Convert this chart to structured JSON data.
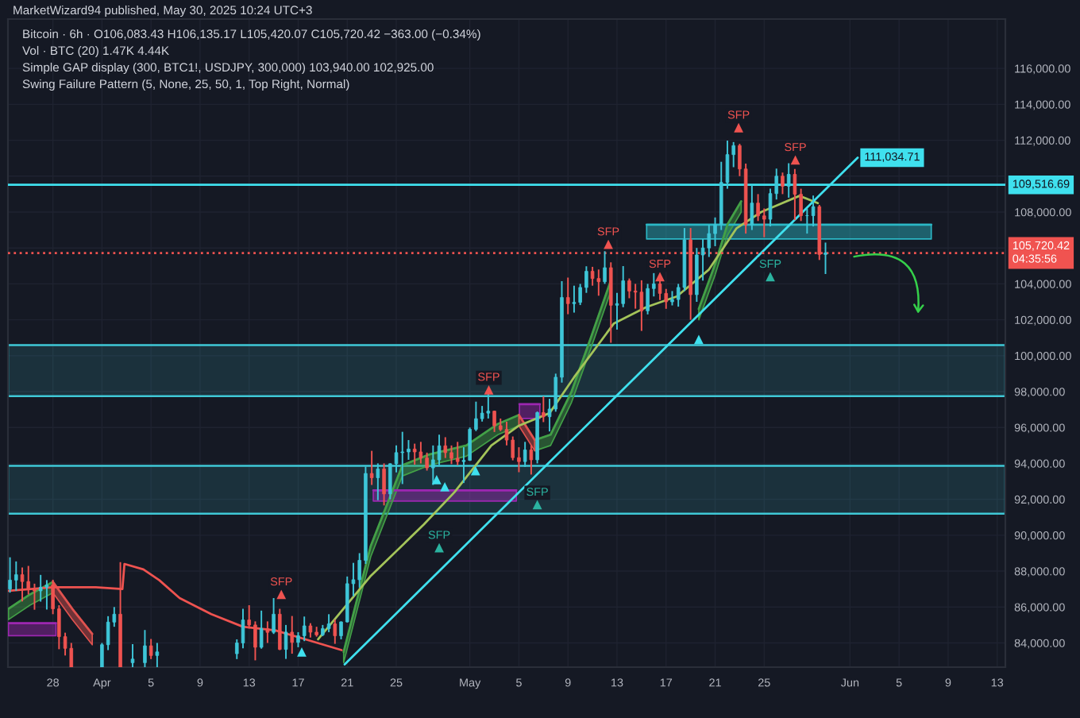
{
  "chart_data": {
    "type": "candlestick",
    "title": "MarketWizard94 published, May 30, 2025 10:24 UTC+3",
    "subtitle": "Bitcoin · 6h · O106,083.43 H106,135.17 L105,420.07 C105,720.42 −363.00 (−0.34%)",
    "annotations": [
      "Vol · BTC (20) 1.47K 4.44K",
      "Simple GAP display (300, BTC1!, USDJPY, 300,000) 103,940.00 102,925.00",
      "Swing Failure Pattern (5, None, 25, 50, 1, Top Right, Normal)"
    ],
    "xlim": [
      "2025-03-24T08:00",
      "2025-06-13T16:00"
    ],
    "ylim": [
      82650,
      118750
    ],
    "xticks": [
      {
        "value": "2025-03-28",
        "label": "28"
      },
      {
        "value": "2025-04-01",
        "label": "Apr"
      },
      {
        "value": "2025-04-05",
        "label": "5"
      },
      {
        "value": "2025-04-09",
        "label": "9"
      },
      {
        "value": "2025-04-13",
        "label": "13"
      },
      {
        "value": "2025-04-17",
        "label": "17"
      },
      {
        "value": "2025-04-21",
        "label": "21"
      },
      {
        "value": "2025-04-25",
        "label": "25"
      },
      {
        "value": "2025-05-01",
        "label": "May"
      },
      {
        "value": "2025-05-05",
        "label": "5"
      },
      {
        "value": "2025-05-09",
        "label": "9"
      },
      {
        "value": "2025-05-13",
        "label": "13"
      },
      {
        "value": "2025-05-17",
        "label": "17"
      },
      {
        "value": "2025-05-21",
        "label": "21"
      },
      {
        "value": "2025-05-25",
        "label": "25"
      },
      {
        "value": "2025-06-01",
        "label": "Jun"
      },
      {
        "value": "2025-06-05",
        "label": "5"
      },
      {
        "value": "2025-06-09",
        "label": "9"
      },
      {
        "value": "2025-06-13",
        "label": "13"
      }
    ],
    "yticks": [
      {
        "value": 84000,
        "label": "84,000.00"
      },
      {
        "value": 86000,
        "label": "86,000.00"
      },
      {
        "value": 88000,
        "label": "88,000.00"
      },
      {
        "value": 90000,
        "label": "90,000.00"
      },
      {
        "value": 92000,
        "label": "92,000.00"
      },
      {
        "value": 94000,
        "label": "94,000.00"
      },
      {
        "value": 96000,
        "label": "96,000.00"
      },
      {
        "value": 98000,
        "label": "98,000.00"
      },
      {
        "value": 100000,
        "label": "100,000.00"
      },
      {
        "value": 102000,
        "label": "102,000.00"
      },
      {
        "value": 104000,
        "label": "104,000.00"
      },
      {
        "value": 106000,
        "label": null
      },
      {
        "value": 108000,
        "label": "108,000.00"
      },
      {
        "value": 110000,
        "label": null
      },
      {
        "value": 112000,
        "label": "112,000.00"
      },
      {
        "value": 114000,
        "label": "114,000.00"
      },
      {
        "value": 116000,
        "label": "116,000.00"
      }
    ],
    "grid": true,
    "x": [
      "2025-03-24T12:00",
      "2025-03-25T00:00",
      "2025-03-25T12:00",
      "2025-03-26T00:00",
      "2025-03-26T12:00",
      "2025-03-27T00:00",
      "2025-03-27T12:00",
      "2025-03-28T00:00",
      "2025-03-28T12:00",
      "2025-03-29T00:00",
      "2025-03-29T12:00",
      "2025-04-01T00:00",
      "2025-04-01T12:00",
      "2025-04-02T00:00",
      "2025-04-02T12:00",
      "2025-04-03T12:00",
      "2025-04-04T12:00",
      "2025-04-05T00:00",
      "2025-04-05T12:00",
      "2025-04-12T00:00",
      "2025-04-12T12:00",
      "2025-04-13T00:00",
      "2025-04-13T12:00",
      "2025-04-14T00:00",
      "2025-04-14T12:00",
      "2025-04-15T00:00",
      "2025-04-15T12:00",
      "2025-04-16T00:00",
      "2025-04-16T12:00",
      "2025-04-17T00:00",
      "2025-04-17T12:00",
      "2025-04-18T00:00",
      "2025-04-18T12:00",
      "2025-04-19T00:00",
      "2025-04-19T12:00",
      "2025-04-20T00:00",
      "2025-04-20T12:00",
      "2025-04-21T00:00",
      "2025-04-21T12:00",
      "2025-04-22T00:00",
      "2025-04-22T12:00",
      "2025-04-23T00:00",
      "2025-04-23T12:00",
      "2025-04-24T00:00",
      "2025-04-24T12:00",
      "2025-04-25T00:00",
      "2025-04-25T12:00",
      "2025-04-26T00:00",
      "2025-04-26T12:00",
      "2025-04-27T00:00",
      "2025-04-27T12:00",
      "2025-04-28T00:00",
      "2025-04-28T12:00",
      "2025-04-29T00:00",
      "2025-04-29T12:00",
      "2025-04-30T00:00",
      "2025-04-30T12:00",
      "2025-05-01T00:00",
      "2025-05-01T12:00",
      "2025-05-02T00:00",
      "2025-05-02T12:00",
      "2025-05-03T00:00",
      "2025-05-03T12:00",
      "2025-05-04T00:00",
      "2025-05-04T12:00",
      "2025-05-05T00:00",
      "2025-05-05T12:00",
      "2025-05-06T00:00",
      "2025-05-06T12:00",
      "2025-05-07T00:00",
      "2025-05-07T12:00",
      "2025-05-08T00:00",
      "2025-05-08T12:00",
      "2025-05-09T00:00",
      "2025-05-09T12:00",
      "2025-05-10T00:00",
      "2025-05-10T12:00",
      "2025-05-11T00:00",
      "2025-05-11T12:00",
      "2025-05-12T00:00",
      "2025-05-12T12:00",
      "2025-05-13T00:00",
      "2025-05-13T12:00",
      "2025-05-14T00:00",
      "2025-05-14T12:00",
      "2025-05-15T00:00",
      "2025-05-15T12:00",
      "2025-05-16T00:00",
      "2025-05-16T12:00",
      "2025-05-17T00:00",
      "2025-05-17T12:00",
      "2025-05-18T00:00",
      "2025-05-18T12:00",
      "2025-05-19T00:00",
      "2025-05-19T12:00",
      "2025-05-20T00:00",
      "2025-05-20T12:00",
      "2025-05-21T00:00",
      "2025-05-21T12:00",
      "2025-05-22T00:00",
      "2025-05-22T12:00",
      "2025-05-23T00:00",
      "2025-05-23T12:00",
      "2025-05-24T00:00",
      "2025-05-24T12:00",
      "2025-05-25T00:00",
      "2025-05-25T12:00",
      "2025-05-26T00:00",
      "2025-05-26T12:00",
      "2025-05-27T00:00",
      "2025-05-27T12:00",
      "2025-05-28T00:00",
      "2025-05-28T12:00",
      "2025-05-29T00:00",
      "2025-05-29T12:00",
      "2025-05-30T00:00"
    ],
    "ohlc": [
      [
        87000,
        88770,
        86800,
        87500
      ],
      [
        87500,
        88540,
        86900,
        87800
      ],
      [
        87800,
        88200,
        86310,
        87420
      ],
      [
        87420,
        88290,
        86700,
        87000
      ],
      [
        87000,
        87300,
        85850,
        86900
      ],
      [
        86900,
        87790,
        86300,
        87100
      ],
      [
        87100,
        87500,
        85860,
        87230
      ],
      [
        87230,
        87520,
        85600,
        85900
      ],
      [
        85900,
        86100,
        83650,
        84350
      ],
      [
        84350,
        84570,
        83300,
        83700
      ],
      [
        83700,
        84000,
        82650,
        82650
      ],
      [
        82650,
        84000,
        82650,
        83900
      ],
      [
        83900,
        85490,
        83600,
        85160
      ],
      [
        85160,
        86000,
        84900,
        85600
      ],
      [
        85600,
        88500,
        82650,
        82650
      ],
      [
        82900,
        83930,
        82650,
        83100
      ],
      [
        82900,
        84720,
        82650,
        83840
      ],
      [
        83840,
        84220,
        83100,
        83300
      ],
      [
        83300,
        84000,
        82650,
        83500
      ],
      [
        83400,
        84200,
        83100,
        84000
      ],
      [
        84000,
        85900,
        83700,
        85280
      ],
      [
        85280,
        86100,
        84800,
        85000
      ],
      [
        85000,
        85200,
        83030,
        83760
      ],
      [
        83760,
        85800,
        83680,
        84800
      ],
      [
        84800,
        85200,
        84000,
        84590
      ],
      [
        84590,
        86500,
        84500,
        85600
      ],
      [
        85600,
        85900,
        83600,
        83640
      ],
      [
        83640,
        85000,
        83110,
        84600
      ],
      [
        84600,
        85500,
        83400,
        84030
      ],
      [
        84030,
        84600,
        83760,
        84400
      ],
      [
        84400,
        85470,
        84100,
        84950
      ],
      [
        84950,
        85100,
        84300,
        84600
      ],
      [
        84600,
        84900,
        84350,
        84450
      ],
      [
        84450,
        85000,
        84380,
        84800
      ],
      [
        84800,
        85600,
        84600,
        85060
      ],
      [
        85060,
        85300,
        83950,
        84400
      ],
      [
        84400,
        85200,
        84200,
        85170
      ],
      [
        85170,
        87700,
        85140,
        87300
      ],
      [
        87300,
        88460,
        86600,
        87520
      ],
      [
        87520,
        89000,
        87080,
        88600
      ],
      [
        88600,
        93820,
        88400,
        93440
      ],
      [
        93440,
        94700,
        92800,
        93200
      ],
      [
        93200,
        94000,
        91950,
        93690
      ],
      [
        93690,
        94000,
        91660,
        92300
      ],
      [
        92300,
        94000,
        92000,
        93980
      ],
      [
        93980,
        95000,
        93500,
        94600
      ],
      [
        94600,
        95760,
        92850,
        94640
      ],
      [
        94640,
        95300,
        94200,
        94800
      ],
      [
        94800,
        95100,
        93930,
        94640
      ],
      [
        94640,
        95200,
        94000,
        94300
      ],
      [
        94300,
        94600,
        93600,
        93750
      ],
      [
        93750,
        95000,
        92800,
        94200
      ],
      [
        94200,
        95600,
        93900,
        94980
      ],
      [
        94980,
        95460,
        94300,
        94600
      ],
      [
        94600,
        95000,
        93960,
        94280
      ],
      [
        94280,
        95200,
        93900,
        94100
      ],
      [
        94100,
        94900,
        92910,
        94170
      ],
      [
        94170,
        96000,
        94140,
        95900
      ],
      [
        95900,
        97440,
        95800,
        96490
      ],
      [
        96490,
        97200,
        96330,
        96800
      ],
      [
        96800,
        97900,
        96500,
        96910
      ],
      [
        96910,
        96940,
        95750,
        96100
      ],
      [
        96100,
        96500,
        95800,
        95890
      ],
      [
        95890,
        96320,
        95000,
        95300
      ],
      [
        95300,
        95500,
        94170,
        94320
      ],
      [
        94320,
        94900,
        93510,
        94100
      ],
      [
        94100,
        95200,
        93800,
        94750
      ],
      [
        94750,
        95000,
        93380,
        94200
      ],
      [
        94200,
        96890,
        94000,
        96830
      ],
      [
        96830,
        97730,
        96300,
        96600
      ],
      [
        96600,
        97600,
        95780,
        97030
      ],
      [
        97030,
        99000,
        96880,
        98800
      ],
      [
        98800,
        104150,
        98500,
        103240
      ],
      [
        103240,
        104350,
        102310,
        102900
      ],
      [
        102900,
        103900,
        102400,
        102970
      ],
      [
        102970,
        104000,
        102820,
        103800
      ],
      [
        103800,
        104980,
        103500,
        104700
      ],
      [
        104700,
        104950,
        103900,
        104300
      ],
      [
        104300,
        104800,
        103340,
        104120
      ],
      [
        104120,
        105820,
        104000,
        104900
      ],
      [
        104900,
        105200,
        100720,
        102810
      ],
      [
        102810,
        103500,
        101450,
        102900
      ],
      [
        102900,
        104990,
        102700,
        104170
      ],
      [
        104170,
        104300,
        103200,
        103600
      ],
      [
        103600,
        104000,
        102620,
        103540
      ],
      [
        103540,
        104200,
        101380,
        102500
      ],
      [
        102500,
        104000,
        102300,
        103740
      ],
      [
        103740,
        104600,
        103300,
        104000
      ],
      [
        104000,
        104300,
        103100,
        103470
      ],
      [
        103470,
        103720,
        102610,
        103000
      ],
      [
        103000,
        103600,
        102800,
        103130
      ],
      [
        103130,
        104000,
        102730,
        103800
      ],
      [
        103800,
        107110,
        103600,
        106450
      ],
      [
        106450,
        107110,
        102000,
        103400
      ],
      [
        103400,
        106000,
        103000,
        105610
      ],
      [
        105610,
        106500,
        104180,
        106000
      ],
      [
        106000,
        107300,
        105500,
        106800
      ],
      [
        106800,
        107700,
        106100,
        107300
      ],
      [
        107300,
        110800,
        107000,
        109650
      ],
      [
        109650,
        111980,
        109300,
        111200
      ],
      [
        111200,
        111900,
        110500,
        111700
      ],
      [
        111700,
        111800,
        110000,
        110400
      ],
      [
        110400,
        110700,
        106800,
        107290
      ],
      [
        107290,
        109500,
        107000,
        108500
      ],
      [
        108500,
        109000,
        107500,
        107790
      ],
      [
        107790,
        108200,
        106600,
        107600
      ],
      [
        107600,
        109300,
        107200,
        109030
      ],
      [
        109030,
        110420,
        108700,
        110000
      ],
      [
        110000,
        110200,
        109000,
        109440
      ],
      [
        109440,
        110720,
        108800,
        110100
      ],
      [
        110100,
        110400,
        107550,
        108990
      ],
      [
        108990,
        109300,
        107500,
        107800
      ],
      [
        107800,
        108200,
        106800,
        107800
      ],
      [
        107800,
        108920,
        107200,
        108300
      ],
      [
        108300,
        108400,
        105330,
        105640
      ],
      [
        105640,
        106300,
        104550,
        105720.42
      ]
    ],
    "series": [
      {
        "type": "line",
        "color": "#9c27b0",
        "x": [
          "2025-03-24T09:00",
          "2025-03-28T06:00",
          "2025-04-10T00:00",
          "2025-04-23T03:00",
          "2025-05-04T19:00",
          "2025-05-04T22:00",
          "2025-05-05T01:00",
          "2025-05-06T17:00"
        ],
        "values": [
          85100,
          85100,
          null,
          92500,
          92500,
          null,
          97300,
          97300
        ],
        "lower": [
          84400,
          84400,
          null,
          91900,
          91900,
          null,
          96500,
          96500
        ],
        "upper": [
          85100,
          85100,
          null,
          92500,
          92500,
          null,
          97300,
          97300
        ]
      },
      {
        "type": "line",
        "color": "#2bb8c6",
        "x": [
          "2025-05-15T10:00",
          "2025-06-07T15:00"
        ],
        "values": [
          107300,
          107300
        ],
        "lower": [
          106500,
          106500
        ],
        "upper": [
          107300,
          107300
        ]
      },
      {
        "type": "line",
        "color": "#43a047",
        "x": [
          "2025-03-24T09:00",
          "2025-03-26T03:00",
          "2025-03-28T00:00",
          "2025-04-10T00:00",
          "2025-04-20T17:00",
          "2025-04-22T22:00",
          "2025-04-25T12:00",
          "2025-04-27T17:00",
          "2025-04-30T17:00",
          "2025-05-03T07:00",
          "2025-05-05T00:00",
          "2025-05-05T12:00",
          "2025-05-06T07:00",
          "2025-05-07T14:00",
          "2025-05-09T07:00",
          "2025-05-10T22:00",
          "2025-05-12T12:00",
          "2025-05-15T00:00",
          "2025-05-19T16:00",
          "2025-05-21T00:00",
          "2025-05-22T00:00",
          "2025-05-23T03:00"
        ],
        "values": [
          85900,
          86700,
          87400,
          null,
          83500,
          89400,
          93900,
          94500,
          95000,
          96200,
          96700,
          null,
          95300,
          95600,
          98000,
          101100,
          104200,
          null,
          102600,
          105100,
          107300,
          108600
        ],
        "lower": [
          85300,
          86100,
          86800,
          null,
          82900,
          88800,
          93300,
          93900,
          94400,
          95600,
          96100,
          null,
          94700,
          95000,
          97400,
          100500,
          103600,
          null,
          102000,
          104500,
          106700,
          108000
        ],
        "upper": [
          85900,
          86700,
          87400,
          null,
          83500,
          89400,
          93900,
          94500,
          95000,
          96200,
          96700,
          null,
          95300,
          95600,
          98000,
          101100,
          104200,
          null,
          102600,
          105100,
          107300,
          108600
        ]
      },
      {
        "type": "line",
        "color": "#e0524f",
        "x": [
          "2025-03-28T00:00",
          "2025-03-29T14:00",
          "2025-03-31T05:00",
          "2025-04-20T00:00",
          "2025-05-05T00:00",
          "2025-05-06T07:00"
        ],
        "values": [
          87400,
          85900,
          84500,
          null,
          96700,
          95300
        ],
        "lower": [
          86800,
          85300,
          83900,
          null,
          96100,
          94700
        ],
        "upper": [
          87400,
          85900,
          84500,
          null,
          96700,
          95300
        ]
      },
      {
        "type": "line",
        "color": "#ef5350",
        "x": [
          "2025-03-24T09:00",
          "2025-03-28T00:00",
          "2025-03-31T12:00",
          "2025-04-02T16:00",
          "2025-04-02T20:00",
          "2025-04-04T09:00",
          "2025-04-05T16:00",
          "2025-04-07T08:00",
          "2025-04-09T22:00",
          "2025-04-12T12:00",
          "2025-04-15T03:00",
          "2025-04-18T14:00",
          "2025-04-20T13:00"
        ],
        "values": [
          86900,
          87100,
          87100,
          87000,
          88400,
          88100,
          87500,
          86500,
          85600,
          84900,
          84700,
          84000,
          83600
        ]
      },
      {
        "type": "line",
        "color": "#a4c45a",
        "x": [
          "2025-04-18T15:00",
          "2025-04-22T21:00",
          "2025-04-27T06:00",
          "2025-04-29T18:00",
          "2025-05-02T18:00",
          "2025-05-05T00:00",
          "2025-05-07T12:00",
          "2025-05-09T12:00",
          "2025-05-12T18:00",
          "2025-05-15T09:00",
          "2025-05-17T21:00",
          "2025-05-20T12:00",
          "2025-05-22T18:00",
          "2025-05-24T18:00",
          "2025-05-27T21:00",
          "2025-05-29T09:00"
        ],
        "values": [
          84200,
          87700,
          90600,
          92400,
          95000,
          96100,
          96800,
          98800,
          101800,
          102700,
          103300,
          104800,
          107100,
          108000,
          108900,
          108500
        ]
      },
      {
        "type": "line",
        "color": "#3fe0ee",
        "x": [
          "2025-04-20T19:00",
          "2025-06-01T15:00"
        ],
        "values": [
          82800,
          111034.71
        ],
        "value_labels": [
          null,
          "111,034.71"
        ]
      },
      {
        "type": "scatter",
        "color": "#3fe0ee",
        "marker": "triangle",
        "x": [
          "2025-04-17T07:00",
          "2025-04-28T07:00",
          "2025-04-28T23:00",
          "2025-05-01T11:00",
          "2025-05-19T16:00"
        ],
        "values": [
          83500,
          93100,
          92700,
          93600,
          100900
        ]
      },
      {
        "type": "scatter",
        "color": "#ef5350",
        "marker": "triangle",
        "x": [
          "2025-04-15T15:00",
          "2025-05-02T13:00",
          "2025-05-12T07:00",
          "2025-05-16T12:00",
          "2025-05-22T22:00",
          "2025-05-27T13:00"
        ],
        "values": [
          86700,
          98100,
          106200,
          104400,
          112700,
          110900
        ],
        "value_labels": [
          "SFP",
          "SFP",
          "SFP",
          "SFP",
          "SFP",
          "SFP"
        ]
      },
      {
        "type": "scatter",
        "color": "#2bb3a0",
        "marker": "triangle",
        "x": [
          "2025-04-28T12:00",
          "2025-05-06T12:00",
          "2025-05-25T12:00"
        ],
        "values": [
          89300,
          91700,
          104400
        ],
        "value_labels": [
          "SFP",
          "SFP",
          "SFP"
        ]
      }
    ],
    "bands": [
      {
        "axis": "y",
        "from": 97750,
        "to": 100590,
        "color": "#3fc8d6"
      },
      {
        "axis": "y",
        "from": 91200,
        "to": 93860,
        "color": "#3fc8d6"
      }
    ],
    "ref_lines": [
      {
        "axis": "y",
        "value": 109516.69,
        "label": "109,516.69",
        "color": "#3fe0ee",
        "line_style": "solid"
      },
      {
        "axis": "y",
        "value": 105720.42,
        "label": "105,720.42\n04:35:56",
        "color": "#f05350",
        "line_style": "dotted"
      }
    ]
  }
}
